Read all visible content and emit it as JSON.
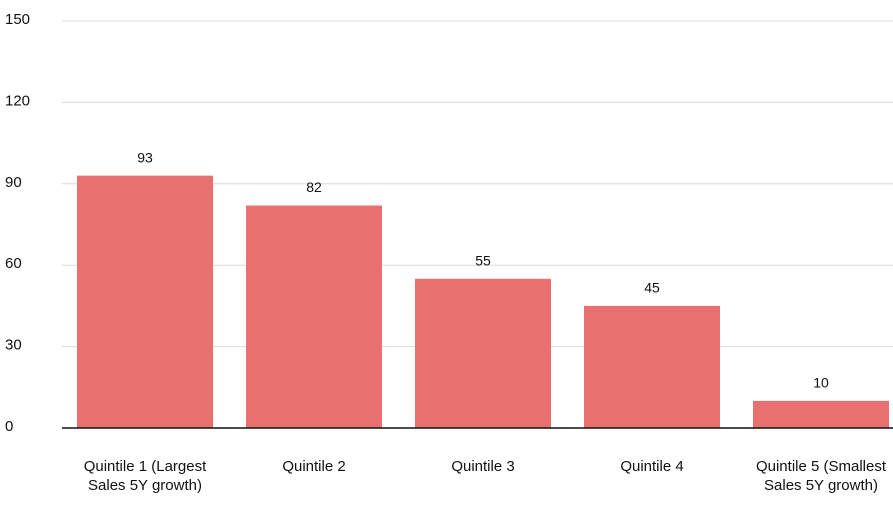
{
  "chart_data": {
    "type": "bar",
    "categories": [
      "Quintile 1 (Largest Sales 5Y growth)",
      "Quintile 2",
      "Quintile 3",
      "Quintile 4",
      "Quintile 5 (Smallest Sales 5Y growth)"
    ],
    "values": [
      93,
      82,
      55,
      45,
      10
    ],
    "color": "#e8706e",
    "ylim": [
      0,
      150
    ],
    "yticks": [
      0,
      30,
      60,
      90,
      120,
      150
    ],
    "grid": true
  }
}
